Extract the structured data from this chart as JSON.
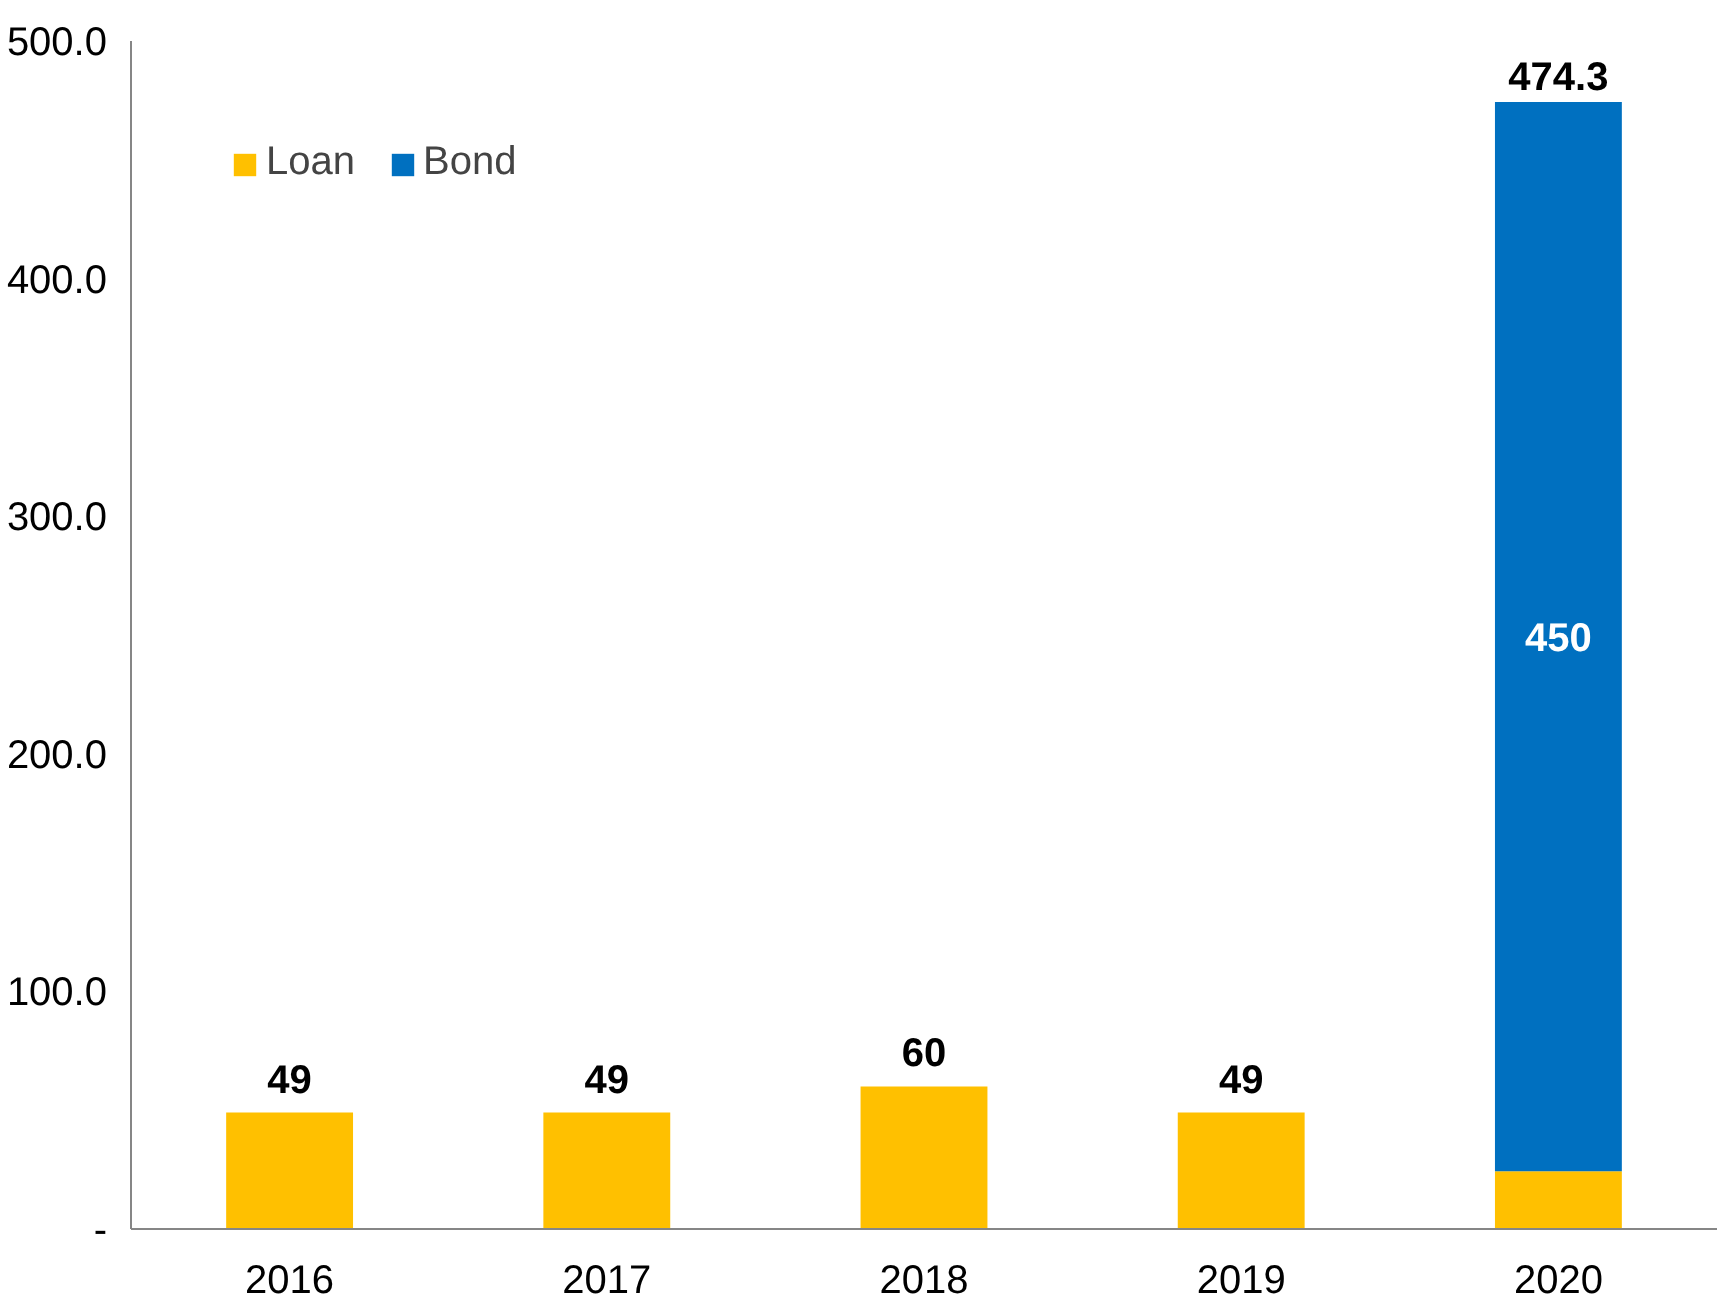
{
  "chart_data": {
    "type": "bar",
    "stacked": true,
    "categories": [
      "2016",
      "2017",
      "2018",
      "2019",
      "2020"
    ],
    "series": [
      {
        "name": "Loan",
        "color": "#ffc000",
        "values": [
          49,
          49,
          60,
          49,
          24.3
        ],
        "value_labels": [
          "49",
          "49",
          "60",
          "49",
          null
        ]
      },
      {
        "name": "Bond",
        "color": "#0070c0",
        "values": [
          null,
          null,
          null,
          null,
          450
        ],
        "value_labels": [
          null,
          null,
          null,
          null,
          "450"
        ]
      }
    ],
    "totals": [
      null,
      null,
      null,
      null,
      "474.3"
    ],
    "ylim": [
      0,
      500
    ],
    "yticks": [
      {
        "value": 0,
        "label": "-"
      },
      {
        "value": 100,
        "label": "100.0"
      },
      {
        "value": 200,
        "label": "200.0"
      },
      {
        "value": 300,
        "label": "300.0"
      },
      {
        "value": 400,
        "label": "400.0"
      },
      {
        "value": 500,
        "label": "500.0"
      }
    ],
    "grid": false,
    "legend": "top left"
  }
}
